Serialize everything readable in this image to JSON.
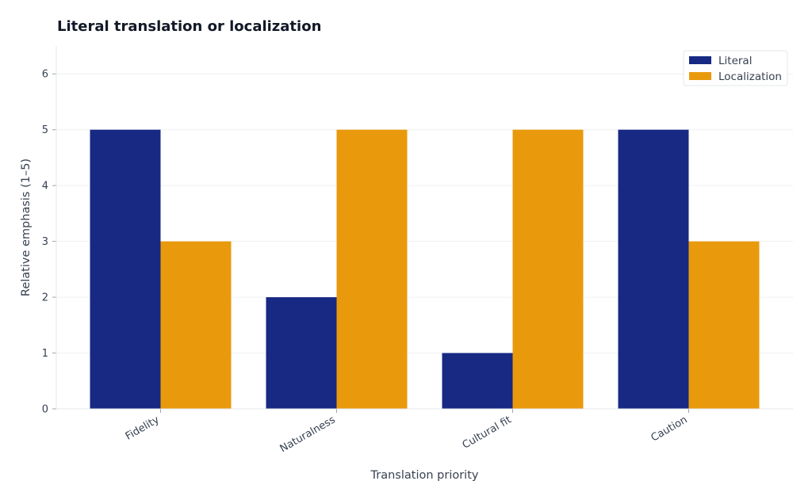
{
  "chart_data": {
    "type": "bar",
    "title": "Literal translation or localization",
    "xlabel": "Translation priority",
    "ylabel": "Relative emphasis (1–5)",
    "categories": [
      "Fidelity",
      "Naturalness",
      "Cultural fit",
      "Caution"
    ],
    "series": [
      {
        "name": "Literal",
        "values": [
          5,
          2,
          1,
          5
        ],
        "color": "#172983"
      },
      {
        "name": "Localization",
        "values": [
          3,
          5,
          5,
          3
        ],
        "color": "#E99A0C"
      }
    ],
    "ylim": [
      0,
      6.5
    ],
    "yticks": [
      0,
      1,
      2,
      3,
      4,
      5,
      6
    ],
    "grid": true,
    "legend_position": "top-right"
  }
}
